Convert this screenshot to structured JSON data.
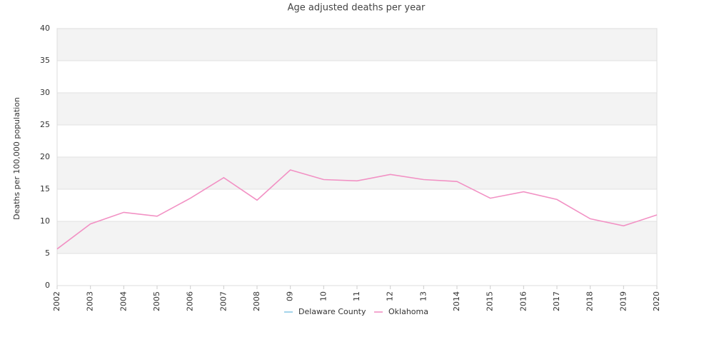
{
  "chart_data": {
    "type": "line",
    "title": "Age adjusted deaths per year",
    "y_label": "Deaths per 100,000 population",
    "categories": [
      "2002",
      "2003",
      "2004",
      "2005",
      "2006",
      "2007",
      "2008",
      "09",
      "10",
      "11",
      "12",
      "13",
      "2014",
      "2015",
      "2016",
      "2017",
      "2018",
      "2019",
      "2020"
    ],
    "series": [
      {
        "name": "Delaware County",
        "color": "#8ecae6",
        "values": [
          null,
          null,
          null,
          null,
          null,
          null,
          null,
          null,
          null,
          null,
          null,
          null,
          null,
          null,
          null,
          null,
          null,
          null,
          null
        ]
      },
      {
        "name": "Oklahoma",
        "color": "#f291c4",
        "values": [
          5.7,
          9.6,
          11.4,
          10.8,
          13.6,
          16.8,
          13.3,
          18.0,
          16.5,
          16.3,
          17.3,
          16.5,
          16.2,
          13.6,
          14.6,
          13.4,
          10.4,
          9.3,
          11.0
        ]
      }
    ],
    "ylim": [
      0,
      40
    ],
    "yticks": [
      0,
      5,
      10,
      15,
      20,
      25,
      30,
      35,
      40
    ],
    "grid": true,
    "legend": "bottom"
  }
}
